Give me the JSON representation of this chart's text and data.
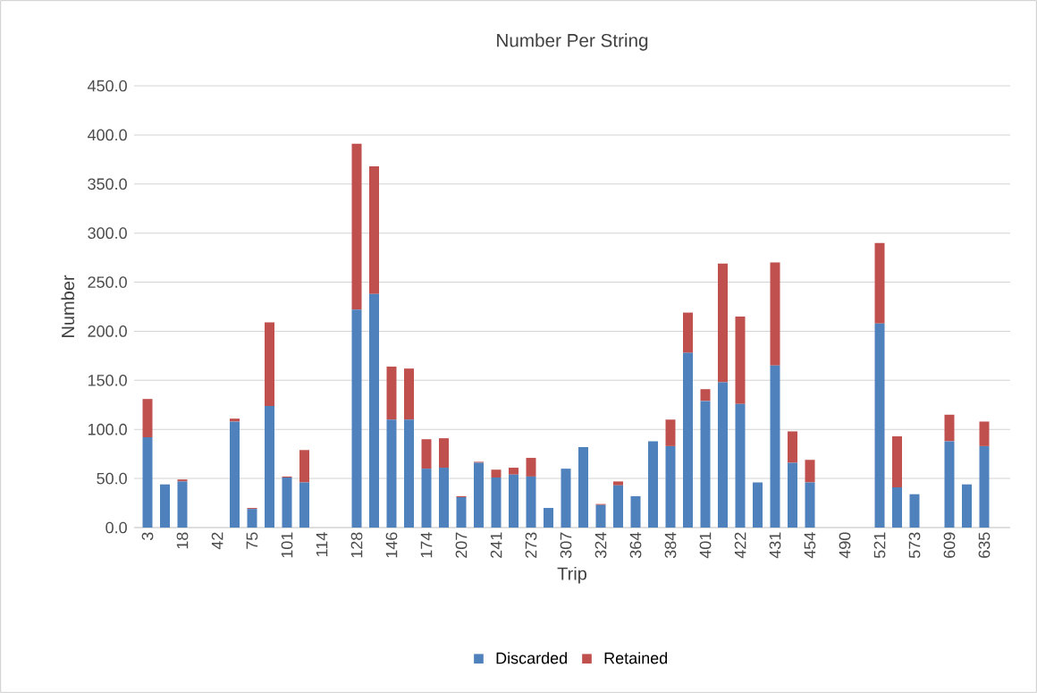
{
  "chart_data": {
    "type": "bar",
    "title": "Number Per String",
    "xlabel": "Trip",
    "ylabel": "Number",
    "categories": [
      "3",
      null,
      "18",
      null,
      "42",
      null,
      "75",
      null,
      "101",
      null,
      "114",
      null,
      "128",
      null,
      "146",
      null,
      "174",
      null,
      "207",
      null,
      "241",
      null,
      "273",
      null,
      "307",
      null,
      "324",
      null,
      "364",
      null,
      "384",
      null,
      "401",
      null,
      "422",
      null,
      "431",
      null,
      "454",
      null,
      "490",
      null,
      "521",
      null,
      "573",
      null,
      "609",
      null,
      "635"
    ],
    "series": [
      {
        "name": "Discarded",
        "color": "#4f81bd",
        "values": [
          92,
          44,
          47,
          0,
          0,
          108,
          19,
          124,
          51,
          46,
          0,
          0,
          222,
          238,
          110,
          110,
          60,
          61,
          31,
          66,
          51,
          54,
          52,
          20,
          60,
          82,
          23,
          43,
          32,
          88,
          83,
          178,
          129,
          148,
          126,
          46,
          165,
          66,
          46,
          0,
          0,
          0,
          208,
          41,
          34,
          0,
          88,
          44,
          83
        ]
      },
      {
        "name": "Retained",
        "color": "#c0504d",
        "values": [
          39,
          0,
          2,
          0,
          0,
          3,
          1,
          85,
          1,
          33,
          0,
          0,
          169,
          130,
          54,
          52,
          30,
          30,
          1,
          1,
          8,
          7,
          19,
          0,
          0,
          0,
          1,
          4,
          0,
          0,
          27,
          41,
          12,
          121,
          89,
          0,
          105,
          32,
          23,
          0,
          0,
          0,
          82,
          52,
          0,
          0,
          27,
          0,
          25
        ]
      }
    ],
    "stacked": true,
    "ylim": [
      0,
      450
    ],
    "yticks": [
      {
        "value": 0,
        "label": "0.0"
      },
      {
        "value": 50,
        "label": "50.0"
      },
      {
        "value": 100,
        "label": "100.0"
      },
      {
        "value": 150,
        "label": "150.0"
      },
      {
        "value": 200,
        "label": "200.0"
      },
      {
        "value": 250,
        "label": "250.0"
      },
      {
        "value": 300,
        "label": "300.0"
      },
      {
        "value": 350,
        "label": "350.0"
      },
      {
        "value": 400,
        "label": "400.0"
      },
      {
        "value": 450,
        "label": "450.0"
      }
    ],
    "grid": "y",
    "legend": "bottom"
  }
}
